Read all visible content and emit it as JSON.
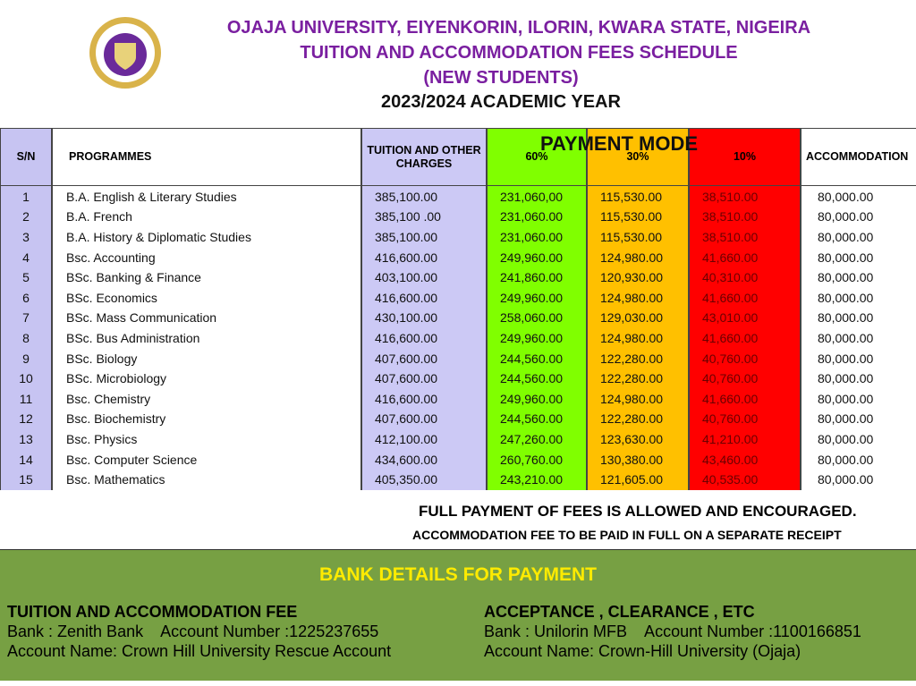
{
  "header": {
    "lines": [
      "OJAJA UNIVERSITY, EIYENKORIN, ILORIN, KWARA STATE, NIGEIRA",
      "TUITION AND ACCOMMODATION FEES SCHEDULE",
      "(NEW STUDENTS)",
      "2023/2024 ACADEMIC YEAR"
    ]
  },
  "table": {
    "payment_mode": "PAYMENT MODE",
    "columns": [
      "S/N",
      "PROGRAMMES",
      "TUITION AND OTHER CHARGES",
      "60%",
      "30%",
      "10%",
      "ACCOMMODATION"
    ],
    "rows": [
      [
        "1",
        "B.A. English & Literary Studies",
        "385,100.00",
        "231,060,00",
        "115,530.00",
        "38,510.00",
        "80,000.00"
      ],
      [
        "2",
        "B.A. French",
        "385,100 .00",
        "231,060.00",
        "115,530.00",
        "38,510.00",
        "80,000.00"
      ],
      [
        "3",
        "B.A. History & Diplomatic Studies",
        "385,100.00",
        "231,060.00",
        "115,530.00",
        "38,510.00",
        "80,000.00"
      ],
      [
        "4",
        "Bsc. Accounting",
        "416,600.00",
        "249,960.00",
        "124,980.00",
        "41,660.00",
        "80,000.00"
      ],
      [
        "5",
        "BSc. Banking & Finance",
        "403,100.00",
        "241,860.00",
        "120,930.00",
        "40,310.00",
        "80,000.00"
      ],
      [
        "6",
        "BSc. Economics",
        "416,600.00",
        "249,960.00",
        "124,980.00",
        "41,660.00",
        "80,000.00"
      ],
      [
        "7",
        "BSc. Mass Communication",
        "430,100.00",
        "258,060.00",
        "129,030.00",
        "43,010.00",
        "80,000.00"
      ],
      [
        "8",
        "BSc. Bus Administration",
        "416,600.00",
        "249,960.00",
        "124,980.00",
        "41,660.00",
        "80,000.00"
      ],
      [
        "9",
        "BSc. Biology",
        "407,600.00",
        "244,560.00",
        "122,280.00",
        "40,760.00",
        "80,000.00"
      ],
      [
        "10",
        "BSc. Microbiology",
        "407,600.00",
        "244,560.00",
        "122,280.00",
        "40,760.00",
        "80,000.00"
      ],
      [
        "11",
        "Bsc. Chemistry",
        "416,600.00",
        "249,960.00",
        "124,980.00",
        "41,660.00",
        "80,000.00"
      ],
      [
        "12",
        "Bsc. Biochemistry",
        "407,600.00",
        "244,560.00",
        "122,280.00",
        "40,760.00",
        "80,000.00"
      ],
      [
        "13",
        "Bsc. Physics",
        "412,100.00",
        "247,260.00",
        "123,630.00",
        "41,210.00",
        "80,000.00"
      ],
      [
        "14",
        "Bsc. Computer Science",
        "434,600.00",
        "260,760.00",
        "130,380.00",
        "43,460.00",
        "80,000.00"
      ],
      [
        "15",
        "Bsc. Mathematics",
        "405,350.00",
        "243,210.00",
        "121,605.00",
        "40,535.00",
        "80,000.00"
      ]
    ]
  },
  "notes": [
    "FULL PAYMENT OF FEES IS ALLOWED AND ENCOURAGED.",
    "ACCOMMODATION FEE TO BE PAID IN FULL ON A SEPARATE RECEIPT"
  ],
  "bank": {
    "title": "BANK DETAILS FOR PAYMENT",
    "left": {
      "heading": "TUITION AND ACCOMMODATION FEE",
      "bank": "Bank : Zenith Bank    Account Number :1225237655",
      "name": "Account Name: Crown Hill University Rescue Account"
    },
    "right": {
      "heading": "ACCEPTANCE , CLEARANCE , ETC",
      "bank": "Bank : Unilorin MFB    Account Number :1100166851",
      "name": "Account Name: Crown-Hill University (Ojaja)"
    }
  }
}
